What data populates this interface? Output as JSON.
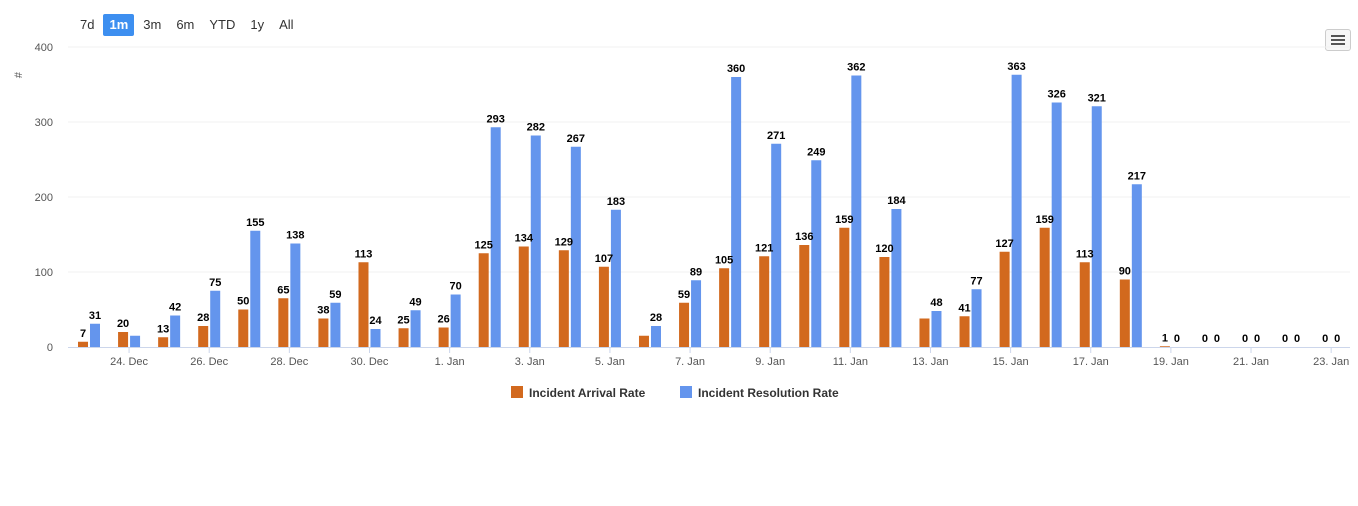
{
  "range_selector": {
    "buttons": [
      "7d",
      "1m",
      "3m",
      "6m",
      "YTD",
      "1y",
      "All"
    ],
    "selected": "1m"
  },
  "menu": {
    "icon": "hamburger-menu-icon"
  },
  "chart_data": {
    "type": "bar",
    "title": "",
    "xlabel": "",
    "ylabel": "#",
    "ylim": [
      0,
      400
    ],
    "yticks": [
      0,
      100,
      200,
      300,
      400
    ],
    "grid": true,
    "legend": "bottom-center",
    "data_labels": true,
    "categories": [
      "23. Dec",
      "24. Dec",
      "25. Dec",
      "26. Dec",
      "27. Dec",
      "28. Dec",
      "29. Dec",
      "30. Dec",
      "31. Dec",
      "1. Jan",
      "2. Jan",
      "3. Jan",
      "4. Jan",
      "5. Jan",
      "6. Jan",
      "7. Jan",
      "8. Jan",
      "9. Jan",
      "10. Jan",
      "11. Jan",
      "12. Jan",
      "13. Jan",
      "14. Jan",
      "15. Jan",
      "16. Jan",
      "17. Jan",
      "18. Jan",
      "19. Jan",
      "20. Jan",
      "21. Jan",
      "22. Jan",
      "23. Jan"
    ],
    "xticks": [
      "24. Dec",
      "26. Dec",
      "28. Dec",
      "30. Dec",
      "1. Jan",
      "3. Jan",
      "5. Jan",
      "7. Jan",
      "9. Jan",
      "11. Jan",
      "13. Jan",
      "15. Jan",
      "17. Jan",
      "19. Jan",
      "21. Jan",
      "23. Jan"
    ],
    "series": [
      {
        "name": "Incident Arrival Rate",
        "color": "#d2691e",
        "values": [
          7,
          20,
          13,
          28,
          50,
          65,
          38,
          113,
          25,
          26,
          125,
          134,
          129,
          107,
          null,
          59,
          105,
          121,
          136,
          159,
          120,
          null,
          41,
          127,
          159,
          113,
          90,
          1,
          0,
          0,
          0,
          0
        ],
        "labels": [
          "7",
          "20",
          "13",
          "28",
          "50",
          "65",
          "38",
          "113",
          "25",
          "26",
          "125",
          "134",
          "129",
          "107",
          "",
          "59",
          "105",
          "121",
          "136",
          "159",
          "120",
          "",
          "41",
          "127",
          "159",
          "113",
          "90",
          "1",
          "0",
          "0",
          "0",
          "0"
        ]
      },
      {
        "name": "Incident Resolution Rate",
        "color": "#6495ed",
        "values": [
          31,
          null,
          42,
          75,
          155,
          138,
          59,
          24,
          49,
          70,
          293,
          282,
          267,
          183,
          28,
          89,
          360,
          271,
          249,
          362,
          184,
          48,
          77,
          363,
          326,
          321,
          217,
          0,
          0,
          0,
          0,
          0
        ],
        "labels": [
          "31",
          "",
          "42",
          "75",
          "155",
          "138",
          "59",
          "24",
          "49",
          "70",
          "293",
          "282",
          "267",
          "183",
          "28",
          "89",
          "360",
          "271",
          "249",
          "362",
          "184",
          "48",
          "77",
          "363",
          "326",
          "321",
          "217",
          "0",
          "0",
          "0",
          "0",
          "0"
        ]
      }
    ],
    "unlabeled_values": {
      "Incident Arrival Rate": {
        "6. Jan": 15,
        "13. Jan": 38
      },
      "Incident Resolution Rate": {
        "24. Dec": 15
      }
    }
  }
}
